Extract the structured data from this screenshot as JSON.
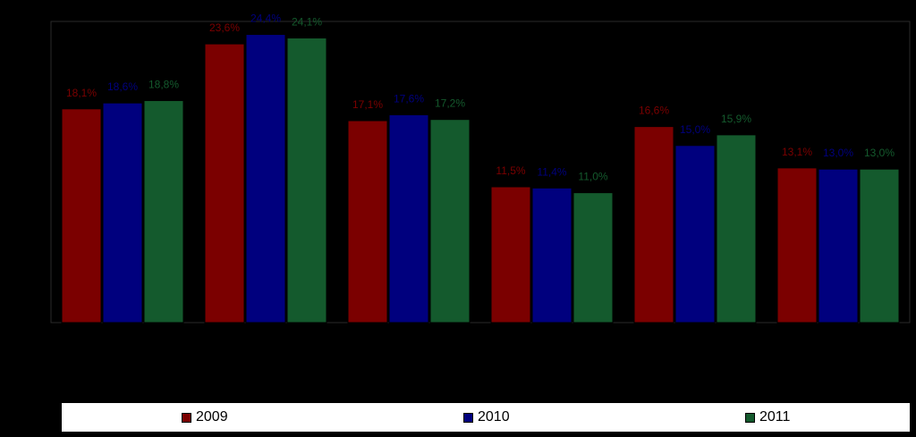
{
  "chart_data": {
    "type": "bar",
    "categories": [
      "",
      "",
      "",
      "",
      "",
      ""
    ],
    "series": [
      {
        "name": "2009",
        "color": "#7b0000",
        "values": [
          18.1,
          23.6,
          17.1,
          11.5,
          16.6,
          13.1
        ],
        "labels": [
          "18,1%",
          "23,6%",
          "17,1%",
          "11,5%",
          "16,6%",
          "13,1%"
        ]
      },
      {
        "name": "2010",
        "color": "#00007e",
        "values": [
          18.6,
          24.4,
          17.6,
          11.4,
          15.0,
          13.0
        ],
        "labels": [
          "18,6%",
          "24,4%",
          "17,6%",
          "11,4%",
          "15,0%",
          "13,0%"
        ]
      },
      {
        "name": "2011",
        "color": "#145a2d",
        "values": [
          18.8,
          24.1,
          17.2,
          11.0,
          15.9,
          13.0
        ],
        "labels": [
          "18,8%",
          "24,1%",
          "17,2%",
          "11,0%",
          "15,9%",
          "13,0%"
        ]
      }
    ],
    "title": "",
    "xlabel": "",
    "ylabel": "",
    "ylim": [
      0,
      25.5
    ],
    "grid": false,
    "legend_position": "bottom"
  }
}
